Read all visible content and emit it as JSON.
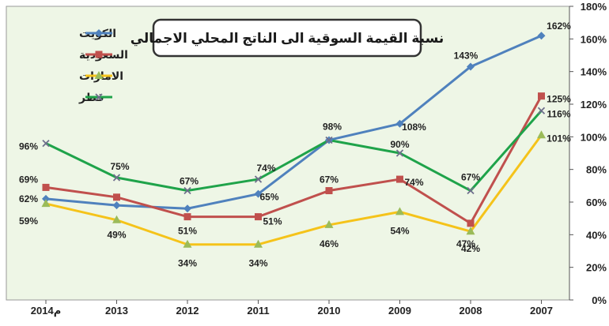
{
  "chart_data": {
    "type": "line",
    "title": "نسبة القيمة السوقية الى الناتج المحلي الاجمالي",
    "categories": [
      "2014م",
      "2013",
      "2012",
      "2011",
      "2010",
      "2009",
      "2008",
      "2007"
    ],
    "ylim": [
      0,
      180
    ],
    "yticks": [
      0,
      20,
      40,
      60,
      80,
      100,
      120,
      140,
      160,
      180
    ],
    "ytick_labels": [
      "0%",
      "20%",
      "40%",
      "60%",
      "80%",
      "100%",
      "120%",
      "140%",
      "160%",
      "180%"
    ],
    "y_axis_position": "right",
    "grid": false,
    "plot_background": "#eef6e6",
    "legend_position": "top-left",
    "series": [
      {
        "name": "الكويت",
        "color": "#4f81bd",
        "marker": "diamond",
        "values": [
          62,
          58,
          56,
          65,
          98,
          108,
          143,
          162
        ],
        "labels": [
          "62%",
          "",
          "",
          "65%",
          "",
          "108%",
          "143%",
          "162%"
        ]
      },
      {
        "name": "السعودية",
        "color": "#c0504d",
        "marker": "square",
        "values": [
          69,
          63,
          51,
          51,
          67,
          74,
          47,
          125
        ],
        "labels": [
          "69%",
          "",
          "51%",
          "51%",
          "67%",
          "74%",
          "47%",
          "125%"
        ]
      },
      {
        "name": "الامارات",
        "color": "#f5c31a",
        "marker": "triangle",
        "values": [
          59,
          49,
          34,
          34,
          46,
          54,
          42,
          101
        ],
        "labels": [
          "59%",
          "49%",
          "34%",
          "34%",
          "46%",
          "54%",
          "42%",
          "101%"
        ]
      },
      {
        "name": "قطر",
        "color": "#1fa34a",
        "marker": "x",
        "values": [
          96,
          75,
          67,
          74,
          98,
          90,
          67,
          116
        ],
        "labels": [
          "96%",
          "75%",
          "67%",
          "74%",
          "98%",
          "90%",
          "67%",
          "116%"
        ]
      }
    ]
  }
}
